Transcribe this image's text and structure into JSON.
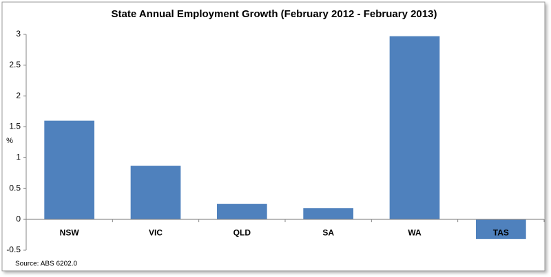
{
  "chart_data": {
    "type": "bar",
    "title": "State Annual Employment Growth (February 2012 - February 2013)",
    "y_label": "%",
    "annotation": "Source: ABS 6202.0",
    "categories": [
      "NSW",
      "VIC",
      "QLD",
      "SA",
      "WA",
      "TAS"
    ],
    "values": [
      1.6,
      0.87,
      0.25,
      0.18,
      2.97,
      -0.32
    ],
    "color": "#4f81bd",
    "ylim": [
      -0.5,
      3
    ],
    "yticks": [
      -0.5,
      0,
      0.5,
      1,
      1.5,
      2,
      2.5,
      3
    ],
    "grid": false
  }
}
